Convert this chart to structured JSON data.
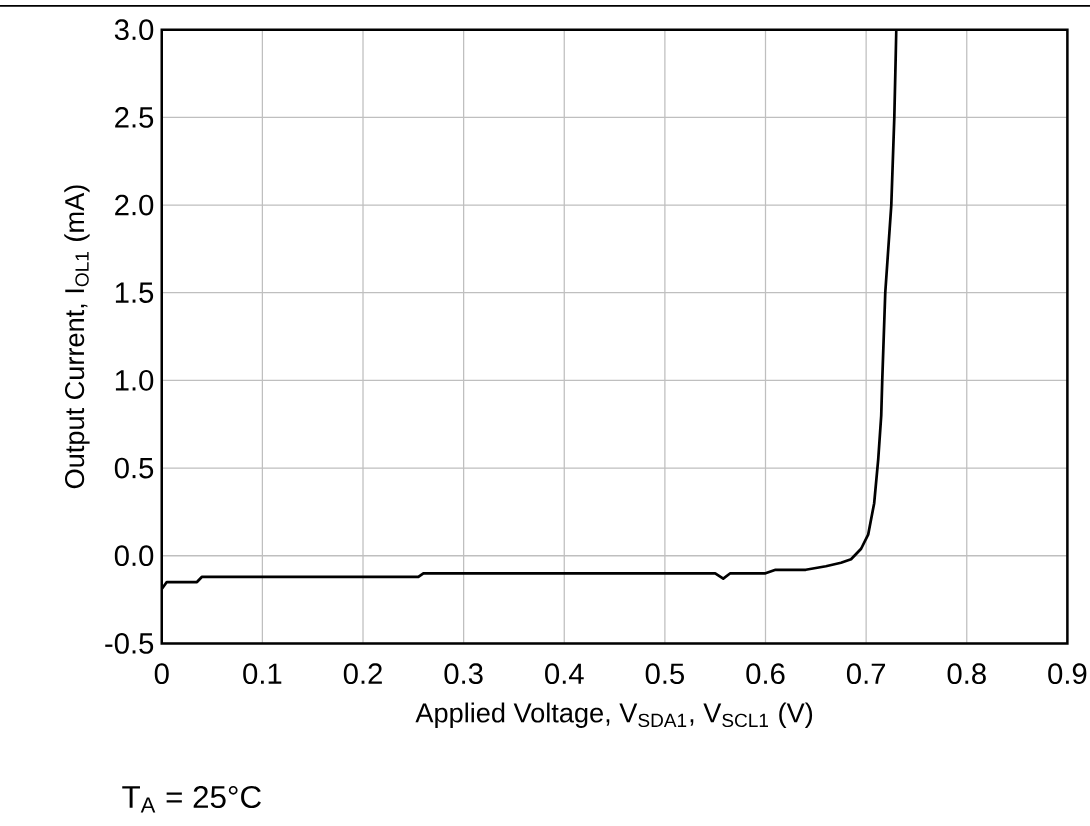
{
  "chart_data": {
    "type": "line",
    "xlabel": "Applied Voltage, V$_{SDA1}$, V$_{SCL1}$ (V)",
    "ylabel": "Output Current, I$_{OL1}$ (mA)",
    "annotations": [
      "T$_{A}$ = 25°C"
    ],
    "x": [
      0,
      0.005,
      0.035,
      0.04,
      0.255,
      0.26,
      0.55,
      0.558,
      0.565,
      0.6,
      0.61,
      0.64,
      0.66,
      0.675,
      0.685,
      0.695,
      0.702,
      0.708,
      0.712,
      0.715,
      0.716,
      0.719,
      0.725,
      0.728,
      0.73
    ],
    "series": [
      {
        "color": "#000000",
        "values": [
          -0.19,
          -0.15,
          -0.15,
          -0.12,
          -0.12,
          -0.1,
          -0.1,
          -0.13,
          -0.1,
          -0.1,
          -0.08,
          -0.08,
          -0.06,
          -0.04,
          -0.02,
          0.04,
          0.12,
          0.3,
          0.55,
          0.8,
          1.0,
          1.5,
          2.0,
          2.5,
          3.0
        ]
      }
    ],
    "xlim": [
      0,
      0.9
    ],
    "ylim": [
      -0.5,
      3.0
    ],
    "xticks": [
      0,
      0.1,
      0.2,
      0.3,
      0.4,
      0.5,
      0.6,
      0.7,
      0.8,
      0.9
    ],
    "yticks": [
      {
        "value": -0.5,
        "label": "-0.5"
      },
      {
        "value": 0,
        "label": "0.0"
      },
      {
        "value": 0.5,
        "label": "0.5"
      },
      {
        "value": 1,
        "label": "1.0"
      },
      {
        "value": 1.5,
        "label": "1.5"
      },
      {
        "value": 2,
        "label": "2.0"
      },
      {
        "value": 2.5,
        "label": "2.5"
      },
      {
        "value": 3,
        "label": "3.0"
      }
    ],
    "grid": true,
    "marker": "none",
    "line_style": "solid"
  }
}
